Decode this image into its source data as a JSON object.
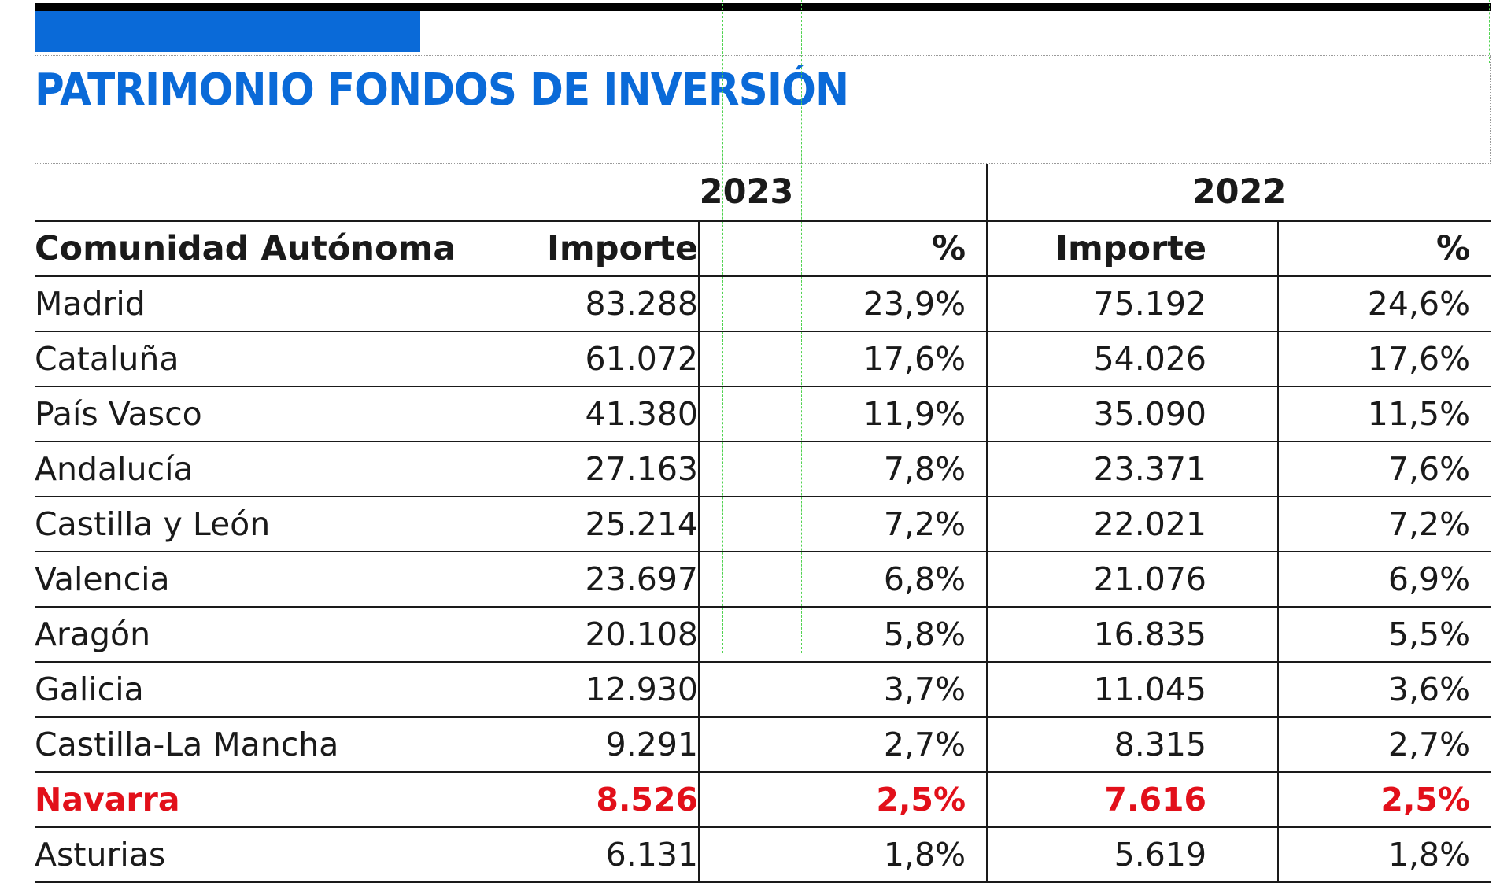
{
  "title": "PATRIMONIO FONDOS DE INVERSIÓN",
  "colors": {
    "accent_blue": "#0a6ad8",
    "highlight_red": "#e2101a",
    "guide_green": "#4fd24f"
  },
  "table": {
    "years": [
      "2023",
      "2022"
    ],
    "headers": {
      "region": "Comunidad Autónoma",
      "importe_2023": "Importe",
      "pct_2023": "%",
      "importe_2022": "Importe",
      "pct_2022": "%"
    },
    "rows": [
      {
        "region": "Madrid",
        "importe_2023": "83.288",
        "pct_2023": "23,9%",
        "importe_2022": "75.192",
        "pct_2022": "24,6%"
      },
      {
        "region": "Cataluña",
        "importe_2023": "61.072",
        "pct_2023": "17,6%",
        "importe_2022": "54.026",
        "pct_2022": "17,6%"
      },
      {
        "region": "País Vasco",
        "importe_2023": "41.380",
        "pct_2023": "11,9%",
        "importe_2022": "35.090",
        "pct_2022": "11,5%"
      },
      {
        "region": "Andalucía",
        "importe_2023": "27.163",
        "pct_2023": "7,8%",
        "importe_2022": "23.371",
        "pct_2022": "7,6%"
      },
      {
        "region": "Castilla y León",
        "importe_2023": "25.214",
        "pct_2023": "7,2%",
        "importe_2022": "22.021",
        "pct_2022": "7,2%"
      },
      {
        "region": "Valencia",
        "importe_2023": "23.697",
        "pct_2023": "6,8%",
        "importe_2022": "21.076",
        "pct_2022": "6,9%"
      },
      {
        "region": "Aragón",
        "importe_2023": "20.108",
        "pct_2023": "5,8%",
        "importe_2022": "16.835",
        "pct_2022": "5,5%"
      },
      {
        "region": "Galicia",
        "importe_2023": "12.930",
        "pct_2023": "3,7%",
        "importe_2022": "11.045",
        "pct_2022": "3,6%"
      },
      {
        "region": "Castilla-La Mancha",
        "importe_2023": "9.291",
        "pct_2023": "2,7%",
        "importe_2022": "8.315",
        "pct_2022": "2,7%"
      },
      {
        "region": "Navarra",
        "importe_2023": "8.526",
        "pct_2023": "2,5%",
        "importe_2022": "7.616",
        "pct_2022": "2,5%",
        "highlight": true
      },
      {
        "region": "Asturias",
        "importe_2023": "6.131",
        "pct_2023": "1,8%",
        "importe_2022": "5.619",
        "pct_2022": "1,8%"
      }
    ]
  }
}
